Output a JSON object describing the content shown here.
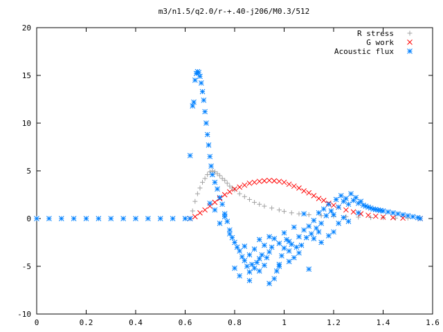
{
  "chart_data": {
    "type": "scatter",
    "title": "m3/n1.5/q2.0/r-+.40-j206/M0.3/512",
    "xlabel": "",
    "ylabel": "",
    "xlim": [
      0,
      1.6
    ],
    "ylim": [
      -10,
      20
    ],
    "xticks": [
      "0",
      "0.2",
      "0.4",
      "0.6",
      "0.8",
      "1",
      "1.2",
      "1.4",
      "1.6"
    ],
    "yticks": [
      "-10",
      "-5",
      "0",
      "5",
      "10",
      "15",
      "20"
    ],
    "grid": false,
    "legend_position": "top-right",
    "series": [
      {
        "name": "R stress",
        "marker": "plus",
        "color": "#a0a0a0",
        "points": [
          [
            0.62,
            0.0
          ],
          [
            0.63,
            0.8
          ],
          [
            0.64,
            1.8
          ],
          [
            0.65,
            2.6
          ],
          [
            0.66,
            3.2
          ],
          [
            0.67,
            3.8
          ],
          [
            0.68,
            4.2
          ],
          [
            0.69,
            4.6
          ],
          [
            0.7,
            4.9
          ],
          [
            0.71,
            5.0
          ],
          [
            0.72,
            4.9
          ],
          [
            0.73,
            4.7
          ],
          [
            0.74,
            4.5
          ],
          [
            0.75,
            4.2
          ],
          [
            0.76,
            4.0
          ],
          [
            0.77,
            3.7
          ],
          [
            0.78,
            3.4
          ],
          [
            0.79,
            3.2
          ],
          [
            0.8,
            3.0
          ],
          [
            0.82,
            2.6
          ],
          [
            0.84,
            2.3
          ],
          [
            0.86,
            2.0
          ],
          [
            0.88,
            1.7
          ],
          [
            0.9,
            1.5
          ],
          [
            0.92,
            1.3
          ],
          [
            0.95,
            1.1
          ],
          [
            0.98,
            0.9
          ],
          [
            1.0,
            0.75
          ],
          [
            1.03,
            0.6
          ],
          [
            1.06,
            0.5
          ],
          [
            1.1,
            0.4
          ],
          [
            1.15,
            0.3
          ],
          [
            1.2,
            0.25
          ],
          [
            1.25,
            0.2
          ],
          [
            1.3,
            0.15
          ],
          [
            1.35,
            0.1
          ],
          [
            1.4,
            0.1
          ],
          [
            1.45,
            0.05
          ],
          [
            1.5,
            0.05
          ],
          [
            1.55,
            0.0
          ]
        ]
      },
      {
        "name": "G work",
        "marker": "cross",
        "color": "#ff0000",
        "points": [
          [
            0.62,
            0.0
          ],
          [
            0.64,
            0.2
          ],
          [
            0.66,
            0.6
          ],
          [
            0.68,
            0.9
          ],
          [
            0.7,
            1.3
          ],
          [
            0.72,
            1.7
          ],
          [
            0.74,
            2.1
          ],
          [
            0.76,
            2.5
          ],
          [
            0.78,
            2.8
          ],
          [
            0.8,
            3.1
          ],
          [
            0.82,
            3.3
          ],
          [
            0.84,
            3.5
          ],
          [
            0.86,
            3.7
          ],
          [
            0.88,
            3.8
          ],
          [
            0.9,
            3.9
          ],
          [
            0.92,
            3.95
          ],
          [
            0.94,
            4.0
          ],
          [
            0.96,
            3.95
          ],
          [
            0.98,
            3.9
          ],
          [
            1.0,
            3.8
          ],
          [
            1.02,
            3.6
          ],
          [
            1.04,
            3.4
          ],
          [
            1.06,
            3.2
          ],
          [
            1.08,
            2.9
          ],
          [
            1.1,
            2.7
          ],
          [
            1.12,
            2.4
          ],
          [
            1.14,
            2.1
          ],
          [
            1.16,
            1.9
          ],
          [
            1.18,
            1.6
          ],
          [
            1.2,
            1.4
          ],
          [
            1.22,
            1.2
          ],
          [
            1.25,
            0.9
          ],
          [
            1.28,
            0.7
          ],
          [
            1.31,
            0.5
          ],
          [
            1.34,
            0.35
          ],
          [
            1.37,
            0.25
          ],
          [
            1.4,
            0.15
          ],
          [
            1.44,
            0.1
          ],
          [
            1.48,
            0.05
          ],
          [
            1.55,
            0.0
          ]
        ]
      },
      {
        "name": "Acoustic flux",
        "marker": "star",
        "color": "#0080ff",
        "points": [
          [
            0.0,
            0.0
          ],
          [
            0.05,
            0.0
          ],
          [
            0.1,
            0.0
          ],
          [
            0.15,
            0.0
          ],
          [
            0.2,
            0.0
          ],
          [
            0.25,
            0.0
          ],
          [
            0.3,
            0.0
          ],
          [
            0.35,
            0.0
          ],
          [
            0.4,
            0.0
          ],
          [
            0.45,
            0.0
          ],
          [
            0.5,
            0.0
          ],
          [
            0.55,
            0.0
          ],
          [
            0.6,
            0.0
          ],
          [
            0.62,
            0.0
          ],
          [
            0.62,
            6.6
          ],
          [
            0.63,
            11.8
          ],
          [
            0.635,
            12.2
          ],
          [
            0.64,
            14.5
          ],
          [
            0.645,
            15.2
          ],
          [
            0.65,
            15.4
          ],
          [
            0.655,
            15.3
          ],
          [
            0.66,
            14.9
          ],
          [
            0.665,
            14.2
          ],
          [
            0.67,
            13.3
          ],
          [
            0.675,
            12.4
          ],
          [
            0.68,
            11.2
          ],
          [
            0.685,
            10.0
          ],
          [
            0.69,
            8.8
          ],
          [
            0.695,
            7.7
          ],
          [
            0.7,
            6.5
          ],
          [
            0.705,
            5.5
          ],
          [
            0.71,
            4.6
          ],
          [
            0.72,
            3.8
          ],
          [
            0.73,
            3.1
          ],
          [
            0.74,
            2.2
          ],
          [
            0.75,
            1.5
          ],
          [
            0.76,
            0.5
          ],
          [
            0.77,
            -0.3
          ],
          [
            0.78,
            -1.2
          ],
          [
            0.79,
            -2.0
          ],
          [
            0.8,
            -2.5
          ],
          [
            0.81,
            -3.0
          ],
          [
            0.82,
            -3.4
          ],
          [
            0.83,
            -4.0
          ],
          [
            0.84,
            -4.4
          ],
          [
            0.85,
            -5.0
          ],
          [
            0.86,
            -5.6
          ],
          [
            0.87,
            -4.8
          ],
          [
            0.88,
            -5.2
          ],
          [
            0.89,
            -4.6
          ],
          [
            0.9,
            -4.2
          ],
          [
            0.91,
            -3.8
          ],
          [
            0.92,
            -4.9
          ],
          [
            0.93,
            -4.1
          ],
          [
            0.94,
            -3.5
          ],
          [
            0.95,
            -3.0
          ],
          [
            0.96,
            -6.3
          ],
          [
            0.97,
            -5.5
          ],
          [
            0.98,
            -4.8
          ],
          [
            0.99,
            -3.9
          ],
          [
            1.0,
            -3.1
          ],
          [
            1.01,
            -2.2
          ],
          [
            1.02,
            -3.4
          ],
          [
            1.03,
            -2.7
          ],
          [
            1.04,
            -4.1
          ],
          [
            1.05,
            -3.0
          ],
          [
            1.06,
            -1.9
          ],
          [
            1.07,
            -2.8
          ],
          [
            1.08,
            -1.2
          ],
          [
            1.09,
            -2.0
          ],
          [
            1.1,
            -0.8
          ],
          [
            1.11,
            -1.6
          ],
          [
            1.12,
            -0.2
          ],
          [
            1.13,
            -1.0
          ],
          [
            1.14,
            0.6
          ],
          [
            1.15,
            -0.5
          ],
          [
            1.16,
            1.0
          ],
          [
            1.17,
            0.3
          ],
          [
            1.18,
            1.5
          ],
          [
            1.19,
            0.8
          ],
          [
            1.2,
            -1.4
          ],
          [
            1.21,
            2.0
          ],
          [
            1.22,
            1.2
          ],
          [
            1.23,
            2.4
          ],
          [
            1.24,
            1.8
          ],
          [
            1.25,
            2.1
          ],
          [
            1.26,
            1.5
          ],
          [
            1.27,
            2.6
          ],
          [
            1.28,
            1.9
          ],
          [
            1.29,
            2.2
          ],
          [
            1.3,
            1.6
          ],
          [
            1.31,
            1.8
          ],
          [
            1.32,
            1.4
          ],
          [
            1.33,
            1.3
          ],
          [
            1.34,
            1.2
          ],
          [
            1.35,
            1.1
          ],
          [
            1.36,
            1.0
          ],
          [
            1.37,
            0.95
          ],
          [
            1.38,
            0.9
          ],
          [
            1.39,
            0.85
          ],
          [
            1.4,
            0.8
          ],
          [
            1.42,
            0.7
          ],
          [
            1.44,
            0.6
          ],
          [
            1.46,
            0.5
          ],
          [
            1.48,
            0.4
          ],
          [
            1.5,
            0.3
          ],
          [
            1.52,
            0.2
          ],
          [
            1.54,
            0.1
          ],
          [
            1.55,
            0.0
          ],
          [
            0.8,
            -5.2
          ],
          [
            0.82,
            -6.0
          ],
          [
            0.86,
            -6.5
          ],
          [
            0.9,
            -5.5
          ],
          [
            0.94,
            -6.8
          ],
          [
            0.98,
            -5.0
          ],
          [
            1.02,
            -4.5
          ],
          [
            1.1,
            -5.3
          ],
          [
            1.15,
            -2.5
          ],
          [
            1.18,
            -1.8
          ],
          [
            1.22,
            -0.5
          ],
          [
            1.08,
            0.5
          ],
          [
            1.04,
            -0.9
          ],
          [
            1.0,
            -1.5
          ],
          [
            0.96,
            -2.1
          ],
          [
            0.92,
            -2.8
          ],
          [
            0.88,
            -3.2
          ],
          [
            0.84,
            -2.9
          ],
          [
            0.78,
            -1.6
          ],
          [
            0.76,
            0.2
          ],
          [
            0.74,
            -0.5
          ],
          [
            0.72,
            0.9
          ],
          [
            0.7,
            1.6
          ],
          [
            1.26,
            -0.3
          ],
          [
            1.3,
            0.6
          ],
          [
            1.24,
            0.1
          ],
          [
            1.2,
            0.4
          ],
          [
            1.14,
            -1.4
          ],
          [
            1.12,
            -2.1
          ],
          [
            1.06,
            -3.6
          ],
          [
            1.02,
            -2.4
          ],
          [
            0.98,
            -2.6
          ],
          [
            0.94,
            -1.9
          ],
          [
            0.9,
            -2.2
          ],
          [
            0.86,
            -3.8
          ]
        ]
      }
    ]
  }
}
